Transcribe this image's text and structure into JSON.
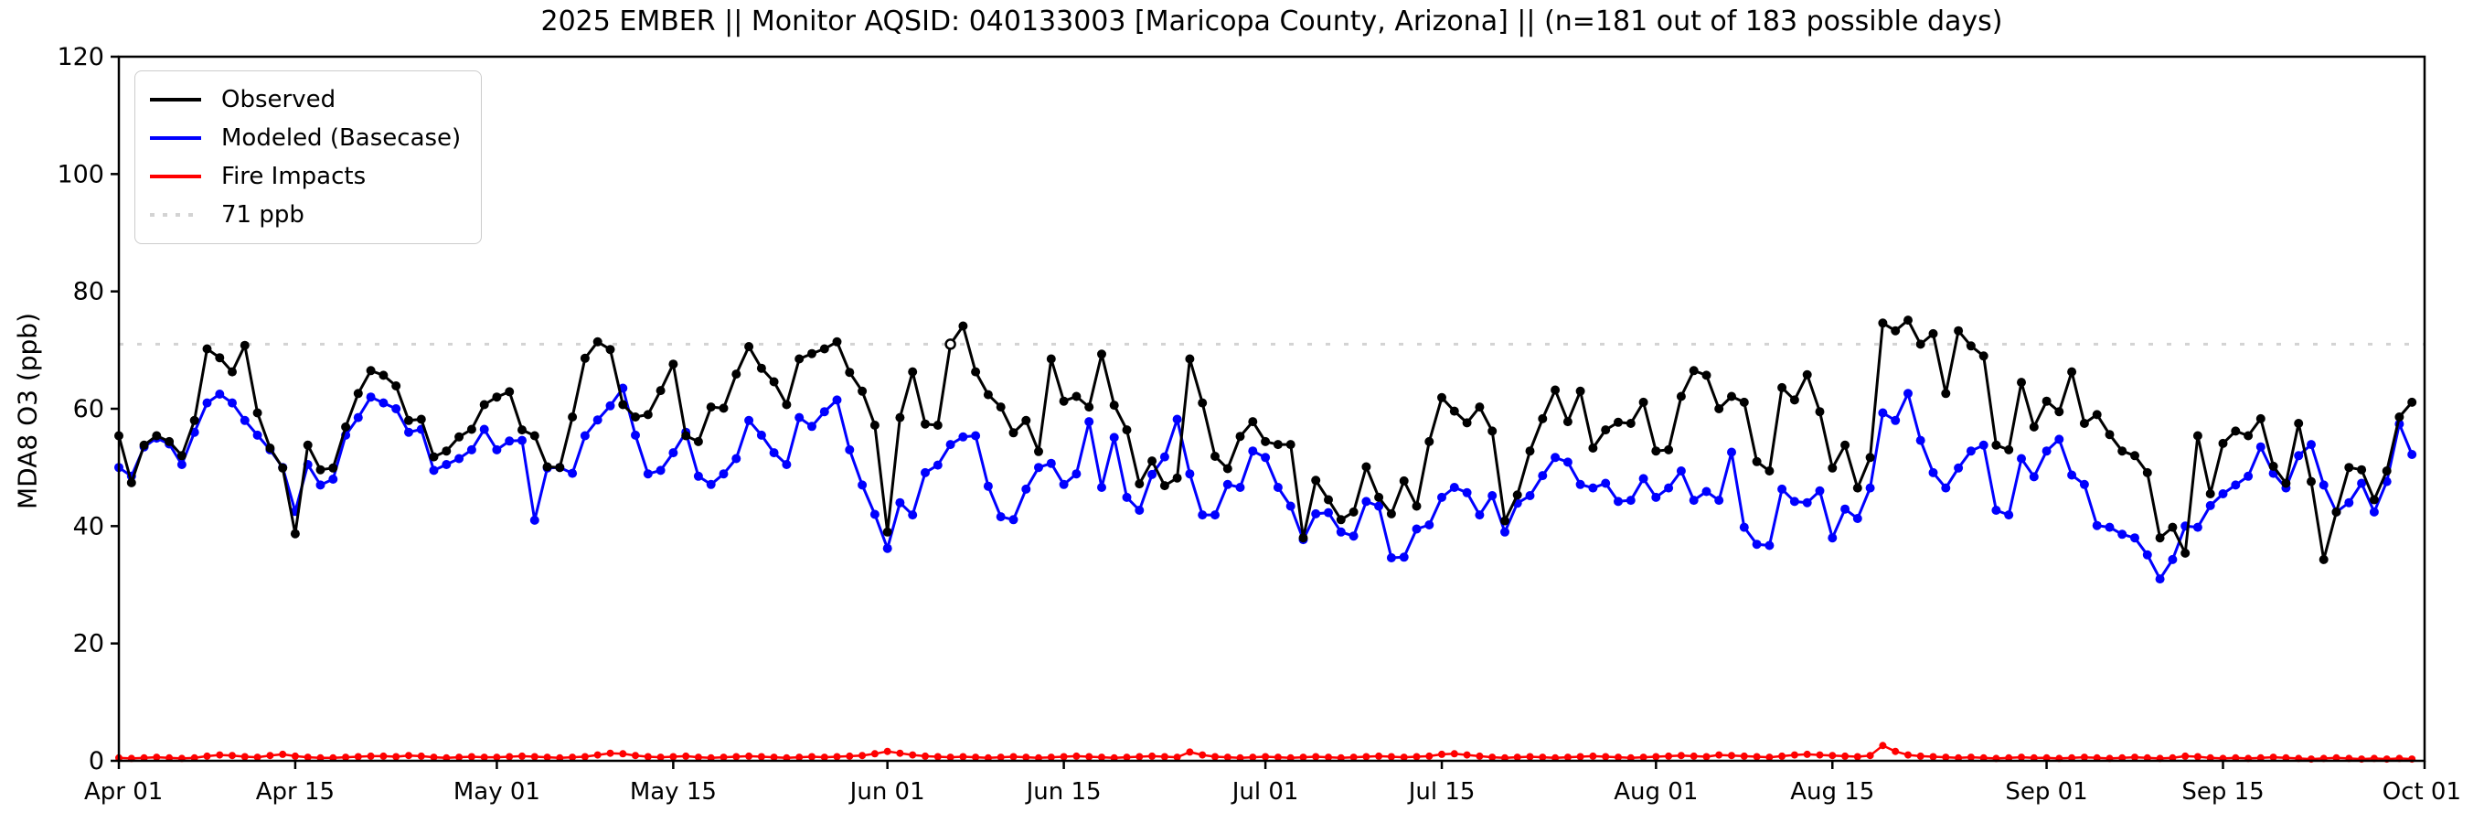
{
  "figure": {
    "title": "2025 EMBER || Monitor AQSID: 040133003 [Maricopa County, Arizona] || (n=181 out of 183 possible days)",
    "ylabel": "MDA8 O3 (ppb)",
    "background_color": "#ffffff",
    "axis_color": "#000000"
  },
  "legend": {
    "position": "upper left",
    "items": [
      {
        "label": "Observed",
        "color": "#000000",
        "style": "solid"
      },
      {
        "label": "Modeled (Basecase)",
        "color": "#0000ff",
        "style": "solid"
      },
      {
        "label": "Fire Impacts",
        "color": "#ff0000",
        "style": "solid"
      },
      {
        "label": "71 ppb",
        "color": "#d3d3d3",
        "style": "dotted"
      }
    ]
  },
  "chart_data": {
    "type": "line",
    "title": "2025 EMBER || Monitor AQSID: 040133003 [Maricopa County, Arizona] || (n=181 out of 183 possible days)",
    "xlabel": "",
    "ylabel": "MDA8 O3 (ppb)",
    "ylim": [
      0,
      120
    ],
    "yticks": [
      0,
      20,
      40,
      60,
      80,
      100,
      120
    ],
    "x_range_days": 183,
    "xtick_day_indices": [
      0,
      14,
      30,
      44,
      61,
      75,
      91,
      105,
      122,
      136,
      153,
      167,
      183
    ],
    "xtick_labels": [
      "Apr 01",
      "Apr 15",
      "May 01",
      "May 15",
      "Jun 01",
      "Jun 15",
      "Jul 01",
      "Jul 15",
      "Aug 01",
      "Aug 15",
      "Sep 01",
      "Sep 15",
      "Oct 01"
    ],
    "grid": false,
    "reference_line": {
      "label": "71 ppb",
      "value": 71,
      "color": "#d3d3d3",
      "style": "dotted"
    },
    "observed_open_marker_index": 66,
    "dates": [
      "Apr 01",
      "Apr 02",
      "Apr 03",
      "Apr 04",
      "Apr 05",
      "Apr 06",
      "Apr 07",
      "Apr 08",
      "Apr 09",
      "Apr 10",
      "Apr 11",
      "Apr 12",
      "Apr 13",
      "Apr 14",
      "Apr 15",
      "Apr 16",
      "Apr 17",
      "Apr 18",
      "Apr 19",
      "Apr 20",
      "Apr 21",
      "Apr 22",
      "Apr 23",
      "Apr 24",
      "Apr 25",
      "Apr 26",
      "Apr 27",
      "Apr 28",
      "Apr 29",
      "Apr 30",
      "May 01",
      "May 02",
      "May 03",
      "May 04",
      "May 05",
      "May 06",
      "May 07",
      "May 08",
      "May 09",
      "May 10",
      "May 11",
      "May 12",
      "May 13",
      "May 14",
      "May 15",
      "May 16",
      "May 17",
      "May 18",
      "May 19",
      "May 20",
      "May 21",
      "May 22",
      "May 23",
      "May 24",
      "May 25",
      "May 26",
      "May 27",
      "May 28",
      "May 29",
      "May 30",
      "May 31",
      "Jun 01",
      "Jun 02",
      "Jun 03",
      "Jun 04",
      "Jun 05",
      "Jun 06",
      "Jun 07",
      "Jun 08",
      "Jun 09",
      "Jun 10",
      "Jun 11",
      "Jun 12",
      "Jun 13",
      "Jun 14",
      "Jun 15",
      "Jun 16",
      "Jun 17",
      "Jun 18",
      "Jun 19",
      "Jun 20",
      "Jun 21",
      "Jun 22",
      "Jun 23",
      "Jun 24",
      "Jun 25",
      "Jun 26",
      "Jun 27",
      "Jun 28",
      "Jun 29",
      "Jun 30",
      "Jul 01",
      "Jul 02",
      "Jul 03",
      "Jul 04",
      "Jul 05",
      "Jul 06",
      "Jul 07",
      "Jul 08",
      "Jul 09",
      "Jul 10",
      "Jul 11",
      "Jul 12",
      "Jul 13",
      "Jul 14",
      "Jul 15",
      "Jul 16",
      "Jul 17",
      "Jul 18",
      "Jul 19",
      "Jul 20",
      "Jul 21",
      "Jul 22",
      "Jul 23",
      "Jul 24",
      "Jul 25",
      "Jul 26",
      "Jul 27",
      "Jul 28",
      "Jul 29",
      "Jul 30",
      "Jul 31",
      "Aug 01",
      "Aug 02",
      "Aug 03",
      "Aug 04",
      "Aug 05",
      "Aug 06",
      "Aug 07",
      "Aug 08",
      "Aug 09",
      "Aug 10",
      "Aug 11",
      "Aug 12",
      "Aug 13",
      "Aug 14",
      "Aug 15",
      "Aug 16",
      "Aug 17",
      "Aug 18",
      "Aug 19",
      "Aug 20",
      "Aug 21",
      "Aug 22",
      "Aug 23",
      "Aug 24",
      "Aug 25",
      "Aug 26",
      "Aug 27",
      "Aug 28",
      "Aug 29",
      "Aug 30",
      "Aug 31",
      "Sep 01",
      "Sep 02",
      "Sep 03",
      "Sep 04",
      "Sep 05",
      "Sep 06",
      "Sep 07",
      "Sep 08",
      "Sep 09",
      "Sep 10",
      "Sep 11",
      "Sep 12",
      "Sep 13",
      "Sep 14",
      "Sep 15",
      "Sep 16",
      "Sep 17",
      "Sep 18",
      "Sep 19",
      "Sep 20",
      "Sep 21",
      "Sep 22",
      "Sep 23",
      "Sep 24",
      "Sep 25",
      "Sep 26",
      "Sep 27",
      "Sep 28",
      "Sep 29",
      "Sep 30"
    ],
    "series": [
      {
        "name": "Observed",
        "color": "#000000",
        "values": [
          55.4,
          47.4,
          53.8,
          55.4,
          54.4,
          52.0,
          58.0,
          70.2,
          68.7,
          66.3,
          70.8,
          59.3,
          53.3,
          49.9,
          38.7,
          53.8,
          49.6,
          49.9,
          56.9,
          62.6,
          66.5,
          65.7,
          63.9,
          58.0,
          58.2,
          51.8,
          52.8,
          55.2,
          56.5,
          60.7,
          62.0,
          62.9,
          56.4,
          55.4,
          50.1,
          50.0,
          58.6,
          68.6,
          71.4,
          70.1,
          60.7,
          58.6,
          59.0,
          63.1,
          67.6,
          55.4,
          54.4,
          60.3,
          60.1,
          65.9,
          70.6,
          66.9,
          64.6,
          60.7,
          68.5,
          69.4,
          70.2,
          71.4,
          66.2,
          63.0,
          57.2,
          39.0,
          58.5,
          66.3,
          57.4,
          57.2,
          71.0,
          74.1,
          66.3,
          62.4,
          60.3,
          55.9,
          58.0,
          52.7,
          68.5,
          61.3,
          62.1,
          60.3,
          69.3,
          60.6,
          56.4,
          47.2,
          51.1,
          46.9,
          48.2,
          68.5,
          61.0,
          51.9,
          49.8,
          55.3,
          57.8,
          54.4,
          53.9,
          53.9,
          38.0,
          47.8,
          44.5,
          41.1,
          42.4,
          50.1,
          44.9,
          42.1,
          47.7,
          43.4,
          54.4,
          61.9,
          59.6,
          57.6,
          60.3,
          56.2,
          40.9,
          45.3,
          52.8,
          58.3,
          63.2,
          57.8,
          63.0,
          53.3,
          56.4,
          57.7,
          57.5,
          61.1,
          52.8,
          53.0,
          62.1,
          66.5,
          65.7,
          60.0,
          62.1,
          61.1,
          51.0,
          49.4,
          63.6,
          61.5,
          65.8,
          59.5,
          49.9,
          53.8,
          46.5,
          51.7,
          74.6,
          73.3,
          75.1,
          71.0,
          72.8,
          62.6,
          73.3,
          70.7,
          69.0,
          53.8,
          53.0,
          64.5,
          56.9,
          61.3,
          59.5,
          66.3,
          57.5,
          59.0,
          55.6,
          52.8,
          52.0,
          49.1,
          38.0,
          39.8,
          35.4,
          55.4,
          45.5,
          54.1,
          56.2,
          55.4,
          58.3,
          50.2,
          47.3,
          57.5,
          47.6,
          34.3,
          42.4,
          50.0,
          49.6,
          44.5,
          49.4,
          58.6,
          61.1
        ]
      },
      {
        "name": "Modeled (Basecase)",
        "color": "#0000ff",
        "values": [
          50.0,
          48.5,
          53.5,
          55.0,
          54.0,
          50.5,
          56.0,
          61.0,
          62.5,
          61.0,
          58.0,
          55.5,
          53.0,
          50.0,
          42.5,
          50.5,
          47.0,
          48.0,
          55.5,
          58.5,
          62.0,
          61.0,
          60.0,
          56.0,
          56.5,
          49.5,
          50.5,
          51.5,
          53.0,
          56.5,
          53.0,
          54.5,
          54.6,
          41.0,
          49.9,
          50.0,
          49.0,
          55.4,
          58.1,
          60.5,
          63.5,
          55.5,
          48.9,
          49.5,
          52.5,
          56.0,
          48.5,
          47.1,
          48.9,
          51.5,
          58.0,
          55.5,
          52.5,
          50.5,
          58.5,
          57.0,
          59.5,
          61.5,
          53.0,
          47.0,
          42.0,
          36.2,
          44.0,
          41.9,
          49.1,
          50.4,
          53.9,
          55.2,
          55.4,
          46.8,
          41.6,
          41.1,
          46.3,
          50.0,
          50.7,
          47.1,
          48.9,
          57.8,
          46.6,
          55.1,
          44.9,
          42.7,
          48.8,
          51.8,
          58.2,
          48.9,
          41.9,
          41.9,
          47.1,
          46.6,
          52.8,
          51.7,
          46.6,
          43.4,
          37.7,
          42.1,
          42.3,
          39.0,
          38.3,
          44.2,
          43.4,
          34.6,
          34.7,
          39.5,
          40.2,
          44.9,
          46.6,
          45.7,
          41.9,
          45.2,
          39.0,
          43.9,
          45.2,
          48.6,
          51.7,
          50.9,
          47.1,
          46.5,
          47.3,
          44.2,
          44.4,
          48.1,
          44.9,
          46.5,
          49.4,
          44.4,
          45.9,
          44.4,
          52.6,
          39.8,
          36.9,
          36.7,
          46.3,
          44.2,
          44.0,
          46.0,
          38.0,
          42.9,
          41.3,
          46.5,
          59.3,
          58.0,
          62.6,
          54.6,
          49.1,
          46.5,
          49.9,
          52.8,
          53.8,
          42.7,
          41.9,
          51.5,
          48.4,
          52.8,
          54.8,
          48.7,
          47.1,
          40.1,
          39.8,
          38.6,
          38.0,
          35.1,
          31.0,
          34.3,
          40.0,
          39.8,
          43.5,
          45.5,
          47.0,
          48.5,
          53.5,
          49.0,
          46.5,
          52.0,
          53.9,
          47.0,
          42.4,
          44.0,
          47.3,
          42.4,
          47.6,
          57.4,
          52.2
        ]
      },
      {
        "name": "Fire Impacts",
        "color": "#ff0000",
        "values": [
          0.5,
          0.4,
          0.5,
          0.6,
          0.5,
          0.4,
          0.5,
          0.8,
          1.0,
          0.9,
          0.7,
          0.6,
          0.9,
          1.1,
          0.8,
          0.6,
          0.5,
          0.5,
          0.6,
          0.7,
          0.8,
          0.8,
          0.7,
          0.9,
          0.8,
          0.6,
          0.5,
          0.6,
          0.7,
          0.6,
          0.6,
          0.7,
          0.8,
          0.7,
          0.6,
          0.5,
          0.6,
          0.7,
          1.0,
          1.3,
          1.2,
          0.9,
          0.7,
          0.6,
          0.7,
          0.8,
          0.6,
          0.5,
          0.6,
          0.7,
          0.8,
          0.7,
          0.6,
          0.5,
          0.6,
          0.7,
          0.6,
          0.7,
          0.8,
          0.9,
          1.2,
          1.6,
          1.3,
          1.0,
          0.8,
          0.7,
          0.6,
          0.7,
          0.6,
          0.5,
          0.6,
          0.7,
          0.6,
          0.5,
          0.6,
          0.7,
          0.8,
          0.7,
          0.6,
          0.5,
          0.6,
          0.7,
          0.8,
          0.7,
          0.6,
          1.5,
          1.0,
          0.7,
          0.6,
          0.5,
          0.6,
          0.7,
          0.6,
          0.5,
          0.6,
          0.7,
          0.6,
          0.5,
          0.6,
          0.7,
          0.8,
          0.7,
          0.6,
          0.7,
          0.8,
          1.1,
          1.2,
          1.0,
          0.8,
          0.6,
          0.5,
          0.6,
          0.7,
          0.6,
          0.5,
          0.6,
          0.7,
          0.8,
          0.7,
          0.6,
          0.5,
          0.6,
          0.7,
          0.8,
          0.9,
          0.8,
          0.7,
          1.0,
          0.9,
          0.8,
          0.7,
          0.6,
          0.8,
          1.0,
          1.1,
          1.0,
          0.9,
          0.8,
          0.7,
          0.9,
          2.6,
          1.6,
          1.0,
          0.8,
          0.7,
          0.6,
          0.5,
          0.6,
          0.5,
          0.4,
          0.5,
          0.6,
          0.5,
          0.5,
          0.4,
          0.5,
          0.6,
          0.5,
          0.4,
          0.5,
          0.6,
          0.5,
          0.4,
          0.5,
          0.8,
          0.7,
          0.5,
          0.4,
          0.5,
          0.4,
          0.5,
          0.6,
          0.5,
          0.4,
          0.3,
          0.4,
          0.5,
          0.4,
          0.3,
          0.4,
          0.3,
          0.4,
          0.3
        ]
      }
    ]
  }
}
